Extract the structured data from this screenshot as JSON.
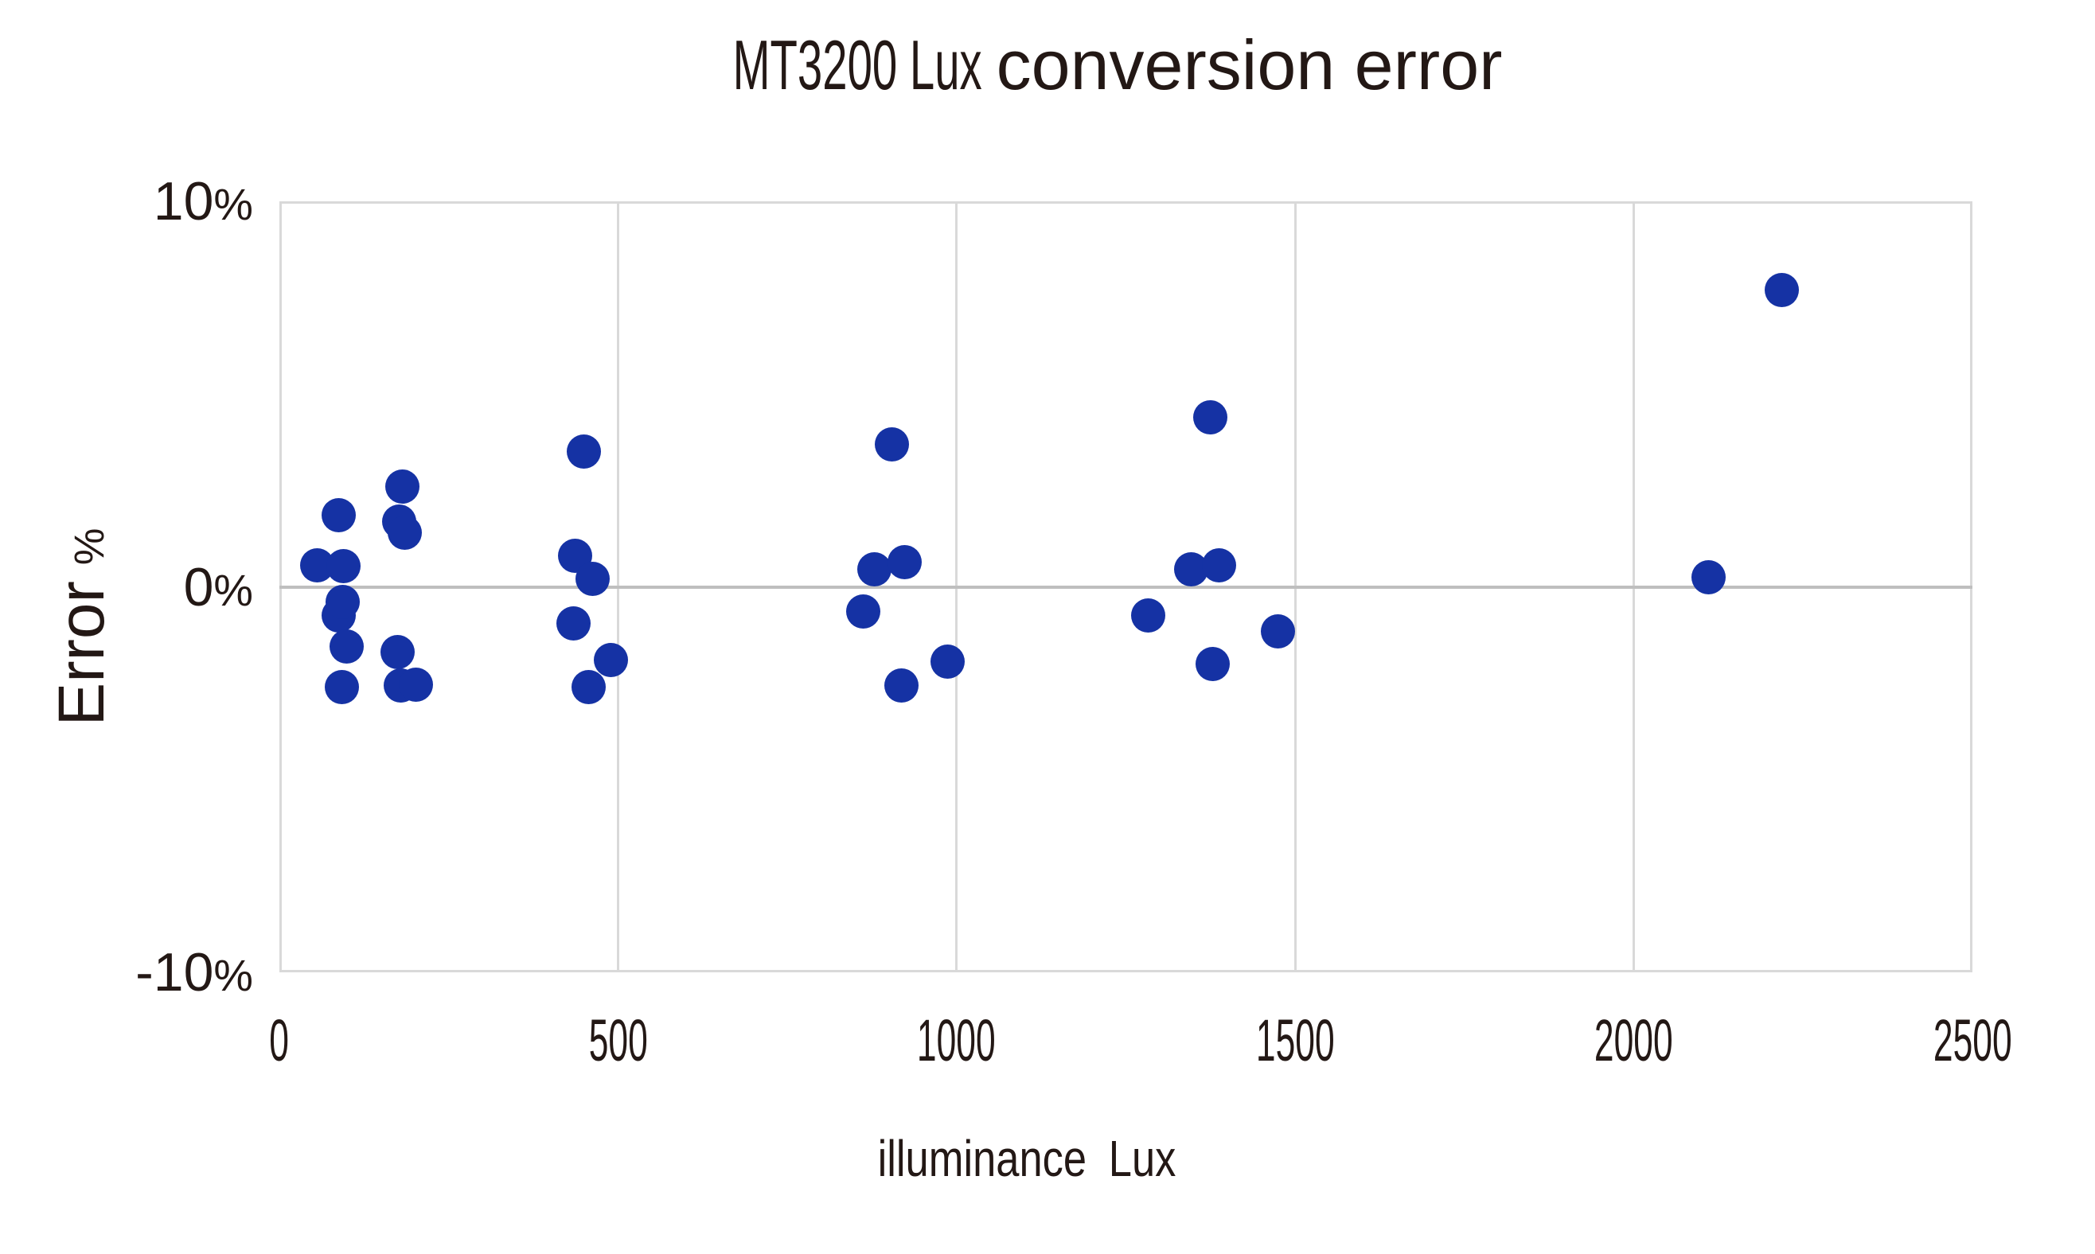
{
  "title": {
    "part1": "MT3200 Lux",
    "part2": "conversion error"
  },
  "axis": {
    "x_title_main": "illuminance",
    "x_title_unit": "Lux",
    "y_title_main": "Error",
    "y_title_unit": "%"
  },
  "colors": {
    "dot": "#1532a4",
    "grid": "#d9d9d9",
    "zero_line": "#bfbfbf",
    "text": "#231815"
  },
  "chart_data": {
    "type": "scatter",
    "title": "MT3200 Lux conversion error",
    "xlabel": "illuminance Lux",
    "ylabel": "Error %",
    "xlim": [
      0,
      2500
    ],
    "ylim": [
      -10,
      10
    ],
    "grid": "vertical-gridlines-plus-zero-line",
    "legend": "none",
    "x_ticks": [
      0,
      500,
      1000,
      1500,
      2000,
      2500
    ],
    "y_ticks": [
      {
        "value": 10,
        "label": "10%"
      },
      {
        "value": 0,
        "label": "0%"
      },
      {
        "value": -10,
        "label": "-10%"
      }
    ],
    "series": [
      {
        "name": "lux conversion error",
        "points": [
          [
            56,
            0.55
          ],
          [
            88,
            1.85
          ],
          [
            88,
            -0.75
          ],
          [
            92,
            -2.6
          ],
          [
            94,
            -0.4
          ],
          [
            95,
            0.53
          ],
          [
            99,
            -1.55
          ],
          [
            175,
            -1.7
          ],
          [
            177,
            1.7
          ],
          [
            179,
            -2.55
          ],
          [
            182,
            2.6
          ],
          [
            185,
            1.4
          ],
          [
            201,
            -2.53
          ],
          [
            434,
            -0.95
          ],
          [
            437,
            0.8
          ],
          [
            450,
            3.5
          ],
          [
            457,
            -2.6
          ],
          [
            462,
            0.2
          ],
          [
            489,
            -1.9
          ],
          [
            862,
            -0.65
          ],
          [
            879,
            0.45
          ],
          [
            905,
            3.7
          ],
          [
            919,
            -2.55
          ],
          [
            923,
            0.65
          ],
          [
            987,
            -1.95
          ],
          [
            1283,
            -0.75
          ],
          [
            1346,
            0.45
          ],
          [
            1375,
            4.4
          ],
          [
            1378,
            -2.0
          ],
          [
            1387,
            0.55
          ],
          [
            1474,
            -1.15
          ],
          [
            2110,
            0.25
          ],
          [
            2219,
            7.7
          ]
        ]
      }
    ]
  }
}
